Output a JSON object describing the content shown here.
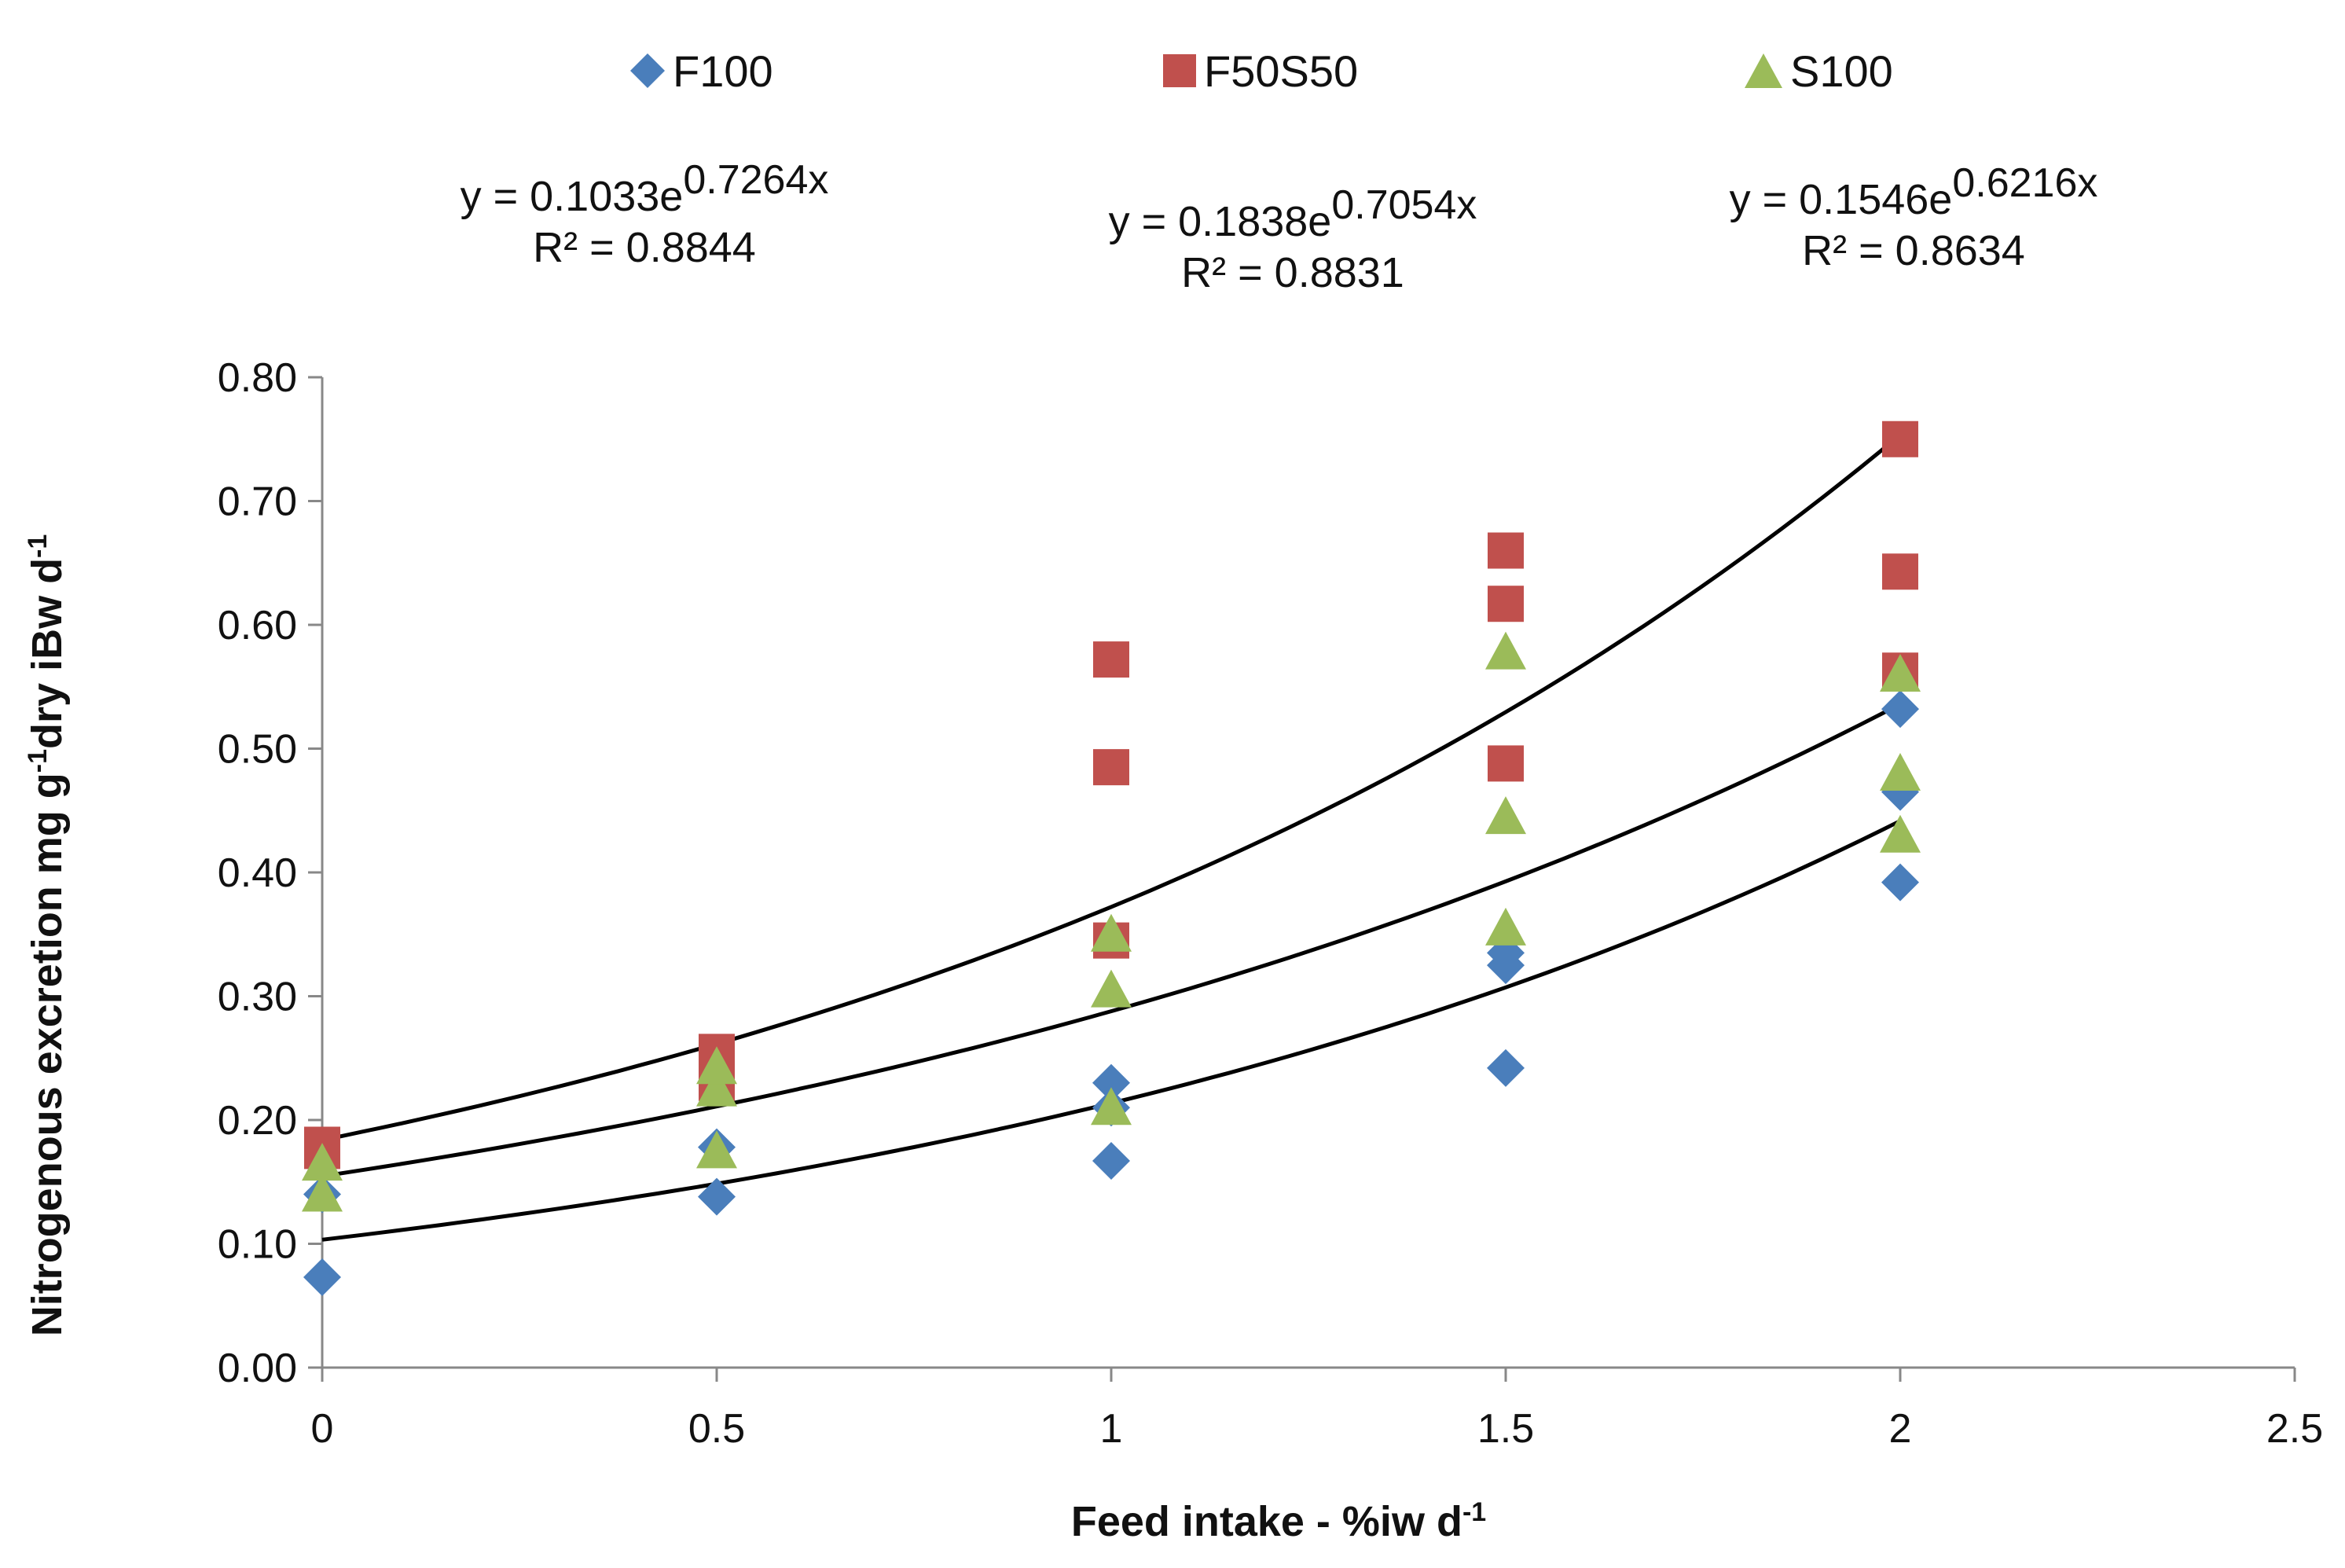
{
  "chart_data": {
    "type": "scatter",
    "title": "",
    "xlabel": "Feed intake - %iw d",
    "xlabel_sup": "-1",
    "ylabel": "Nitrogenous excretion mg g",
    "ylabel_sup1": "-1",
    "ylabel_mid": "dry iBw d",
    "ylabel_sup2": "-1",
    "xlim": [
      0,
      2.5
    ],
    "ylim": [
      0,
      0.8
    ],
    "xticks": [
      0,
      0.5,
      1,
      1.5,
      2,
      2.5
    ],
    "xtick_labels": [
      "0",
      "0.5",
      "1",
      "1.5",
      "2",
      "2.5"
    ],
    "yticks": [
      0,
      0.1,
      0.2,
      0.3,
      0.4,
      0.5,
      0.6,
      0.7,
      0.8
    ],
    "ytick_labels": [
      "0.00",
      "0.10",
      "0.20",
      "0.30",
      "0.40",
      "0.50",
      "0.60",
      "0.70",
      "0.80"
    ],
    "legend_position": "top",
    "series": [
      {
        "name": "F100",
        "marker": "diamond",
        "color": "#4a7ebb",
        "points": [
          [
            0,
            0.073
          ],
          [
            0,
            0.14
          ],
          [
            0.5,
            0.138
          ],
          [
            0.5,
            0.178
          ],
          [
            1,
            0.167
          ],
          [
            1,
            0.21
          ],
          [
            1,
            0.23
          ],
          [
            1.5,
            0.242
          ],
          [
            1.5,
            0.325
          ],
          [
            1.5,
            0.335
          ],
          [
            2,
            0.392
          ],
          [
            2,
            0.465
          ],
          [
            2,
            0.532
          ]
        ]
      },
      {
        "name": "F50S50",
        "marker": "square",
        "color": "#c0504d",
        "points": [
          [
            0,
            0.175
          ],
          [
            0,
            0.18
          ],
          [
            0.5,
            0.255
          ],
          [
            0.5,
            0.23
          ],
          [
            1,
            0.345
          ],
          [
            1,
            0.485
          ],
          [
            1,
            0.572
          ],
          [
            1.5,
            0.488
          ],
          [
            1.5,
            0.617
          ],
          [
            1.5,
            0.66
          ],
          [
            2,
            0.563
          ],
          [
            2,
            0.643
          ],
          [
            2,
            0.75
          ]
        ]
      },
      {
        "name": "S100",
        "marker": "triangle",
        "color": "#9bbb59",
        "points": [
          [
            0,
            0.14
          ],
          [
            0,
            0.165
          ],
          [
            0.5,
            0.175
          ],
          [
            0.5,
            0.225
          ],
          [
            0.5,
            0.243
          ],
          [
            1,
            0.21
          ],
          [
            1,
            0.305
          ],
          [
            1,
            0.35
          ],
          [
            1.5,
            0.355
          ],
          [
            1.5,
            0.445
          ],
          [
            1.5,
            0.578
          ],
          [
            2,
            0.43
          ],
          [
            2,
            0.48
          ],
          [
            2,
            0.56
          ]
        ]
      }
    ],
    "trendlines": [
      {
        "type": "exponential",
        "a": 0.1033,
        "b": 0.7264,
        "x_range": [
          0,
          2
        ],
        "equation_prefix": "y = 0.1033e",
        "equation_exponent": "0.7264x",
        "r2_text": "R² = 0.8844"
      },
      {
        "type": "exponential",
        "a": 0.1838,
        "b": 0.7054,
        "x_range": [
          0,
          2
        ],
        "equation_prefix": "y = 0.1838e",
        "equation_exponent": "0.7054x",
        "r2_text": "R² = 0.8831"
      },
      {
        "type": "exponential",
        "a": 0.1546,
        "b": 0.6216,
        "x_range": [
          0,
          2
        ],
        "equation_prefix": "y = 0.1546e",
        "equation_exponent": "0.6216x",
        "r2_text": "R² = 0.8634"
      }
    ]
  }
}
